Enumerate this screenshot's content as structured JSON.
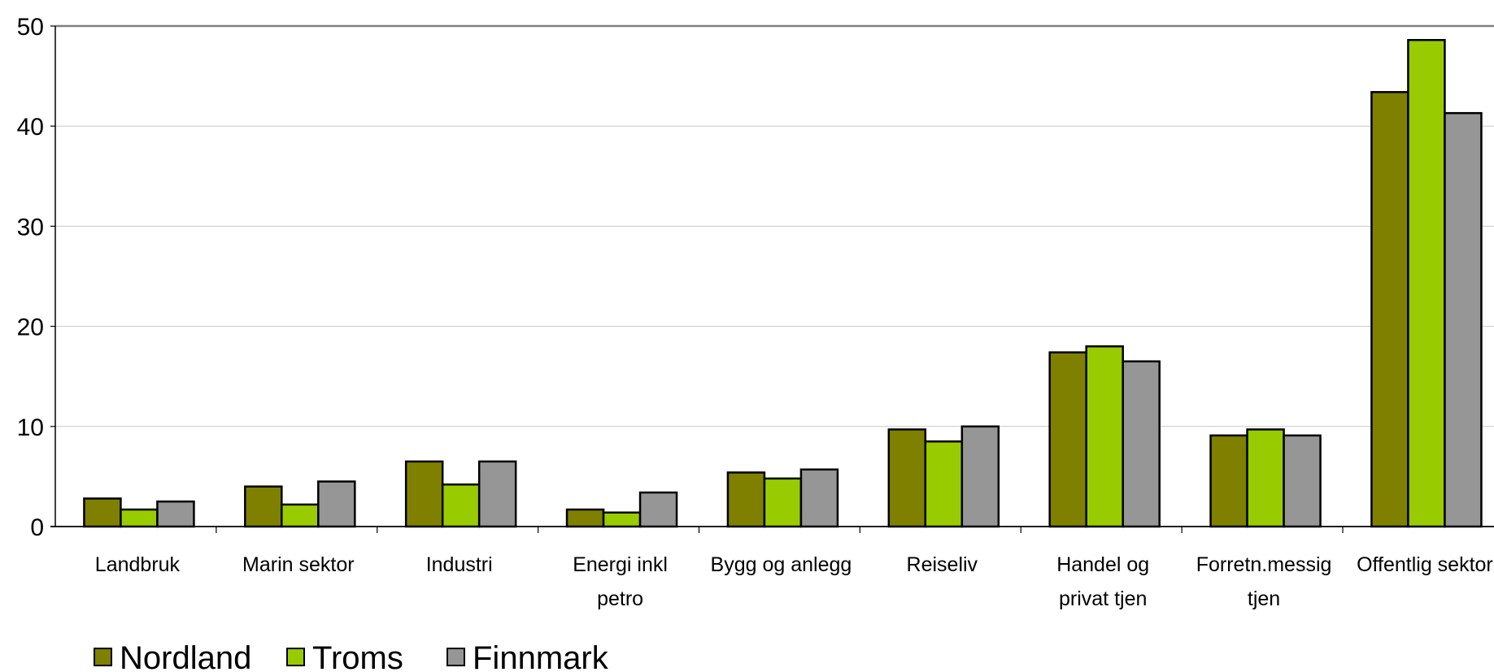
{
  "chart_data": {
    "type": "bar",
    "categories": [
      [
        "Landbruk"
      ],
      [
        "Marin sektor"
      ],
      [
        "Industri"
      ],
      [
        "Energi inkl",
        "petro"
      ],
      [
        "Bygg og anlegg"
      ],
      [
        "Reiseliv"
      ],
      [
        "Handel og",
        "privat tjen"
      ],
      [
        "Forretn.messig",
        "tjen"
      ],
      [
        "Offentlig sektor"
      ]
    ],
    "series": [
      {
        "name": "Nordland",
        "color": "#808000",
        "values": [
          2.8,
          4.0,
          6.5,
          1.7,
          5.4,
          9.7,
          17.4,
          9.1,
          43.4
        ]
      },
      {
        "name": "Troms",
        "color": "#99cc00",
        "values": [
          1.7,
          2.2,
          4.2,
          1.4,
          4.8,
          8.5,
          18.0,
          9.7,
          48.6
        ]
      },
      {
        "name": "Finnmark",
        "color": "#969696",
        "values": [
          2.5,
          4.5,
          6.5,
          3.4,
          5.7,
          10.0,
          16.5,
          9.1,
          41.3
        ]
      }
    ],
    "ylim": [
      0,
      50
    ],
    "yticks": [
      0,
      10,
      20,
      30,
      40,
      50
    ],
    "grid": true,
    "legend_position": "bottom-left"
  }
}
